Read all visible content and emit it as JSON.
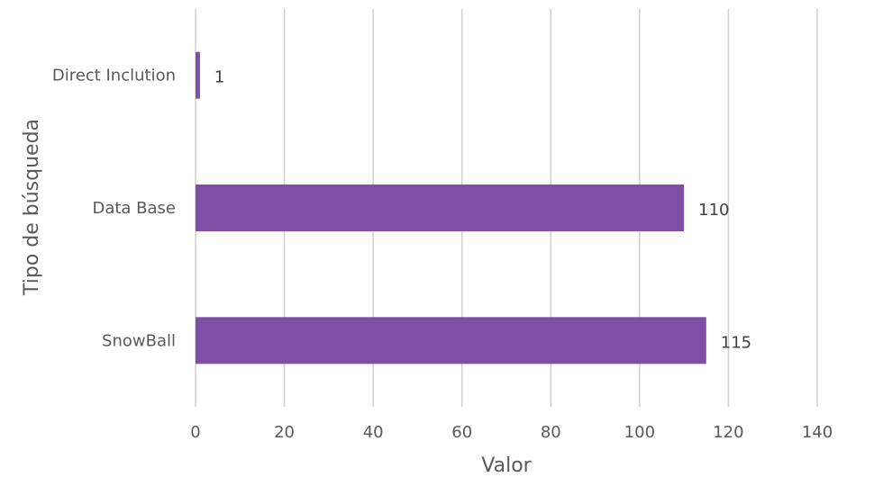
{
  "chart_data": {
    "type": "bar",
    "orientation": "horizontal",
    "categories": [
      "Direct Inclution",
      "Data Base",
      "SnowBall"
    ],
    "values": [
      1,
      110,
      115
    ],
    "xlabel": "Valor",
    "ylabel": "Tipo de búsqueda",
    "xlim": [
      0,
      140
    ],
    "xticks": [
      0,
      20,
      40,
      60,
      80,
      100,
      120,
      140
    ],
    "xtick_labels": [
      "0",
      "20",
      "40",
      "60",
      "80",
      "100",
      "120",
      "140"
    ],
    "data_labels": [
      "1",
      "110",
      "115"
    ],
    "bar_color": "#7f4fa6",
    "grid": "vertical",
    "legend": "none"
  }
}
